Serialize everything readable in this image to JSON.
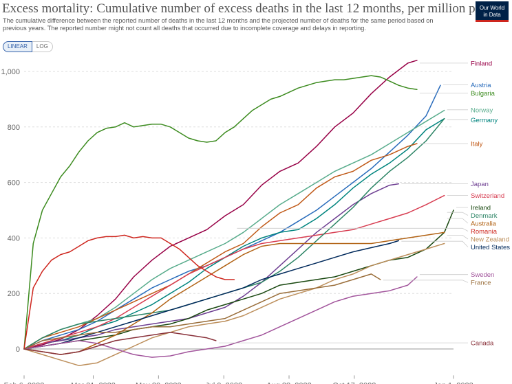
{
  "title": "Excess mortality: Cumulative number of excess deaths in the last 12 months, per million people",
  "subtitle": "The cumulative difference between the reported number of deaths in the last 12 months and the projected number of deaths for the same period based on previous years. The reported number might not count all deaths that occurred due to incomplete coverage and delays in reporting.",
  "logo": {
    "line1": "Our World",
    "line2": "in Data"
  },
  "scale_toggle": {
    "linear": "LINEAR",
    "log": "LOG"
  },
  "chart_data": {
    "type": "line",
    "title": "Excess mortality: Cumulative number of excess deaths in the last 12 months, per million people",
    "xlabel": "",
    "ylabel": "",
    "x_start": "2022-02-06",
    "xlim": [
      0,
      329
    ],
    "x_ticks": [
      {
        "label": "Feb 6, 2022",
        "value": 0
      },
      {
        "label": "Mar 31, 2022",
        "value": 53
      },
      {
        "label": "May 20, 2022",
        "value": 103
      },
      {
        "label": "Jul 9, 2022",
        "value": 153
      },
      {
        "label": "Aug 28, 2022",
        "value": 203
      },
      {
        "label": "Oct 17, 2022",
        "value": 253
      },
      {
        "label": "Jan 1, 2023",
        "value": 329
      }
    ],
    "ylim": [
      -100,
      1050
    ],
    "y_ticks": [
      0,
      200,
      400,
      600,
      800,
      1000
    ],
    "grid": true,
    "legend": "right",
    "series": [
      {
        "name": "Finland",
        "color": "#970046",
        "label_y": 1030,
        "x": [
          0,
          14,
          28,
          42,
          56,
          70,
          84,
          98,
          112,
          126,
          140,
          154,
          168,
          182,
          196,
          210,
          224,
          238,
          252,
          266,
          280,
          294,
          301
        ],
        "y": [
          0,
          15,
          35,
          70,
          120,
          180,
          260,
          320,
          370,
          400,
          430,
          480,
          520,
          590,
          640,
          670,
          730,
          800,
          850,
          920,
          980,
          1030,
          1040
        ]
      },
      {
        "name": "Austria",
        "color": "#286bbb",
        "label_y": 952,
        "x": [
          0,
          14,
          28,
          42,
          56,
          70,
          84,
          98,
          112,
          126,
          140,
          154,
          168,
          182,
          196,
          210,
          224,
          238,
          252,
          266,
          280,
          294,
          308,
          319
        ],
        "y": [
          0,
          30,
          50,
          70,
          100,
          140,
          180,
          220,
          250,
          280,
          300,
          330,
          360,
          390,
          420,
          460,
          500,
          550,
          600,
          650,
          710,
          770,
          840,
          950
        ]
      },
      {
        "name": "Bulgaria",
        "color": "#3c8b1f",
        "label_y": 922,
        "x": [
          0,
          7,
          14,
          21,
          28,
          35,
          42,
          49,
          56,
          63,
          70,
          77,
          84,
          91,
          98,
          105,
          112,
          119,
          126,
          133,
          140,
          147,
          154,
          161,
          168,
          175,
          182,
          189,
          196,
          203,
          210,
          217,
          224,
          231,
          238,
          245,
          252,
          259,
          266,
          273,
          280,
          287,
          294,
          301
        ],
        "y": [
          0,
          380,
          500,
          560,
          620,
          660,
          710,
          750,
          780,
          795,
          800,
          815,
          800,
          805,
          810,
          810,
          800,
          780,
          760,
          750,
          745,
          750,
          780,
          800,
          830,
          860,
          880,
          900,
          910,
          925,
          940,
          950,
          960,
          965,
          970,
          970,
          975,
          980,
          985,
          980,
          965,
          950,
          940,
          935
        ]
      },
      {
        "name": "Norway",
        "color": "#58ac8c",
        "label_y": 862,
        "x": [
          0,
          14,
          28,
          42,
          56,
          70,
          84,
          98,
          112,
          126,
          140,
          154,
          168,
          182,
          196,
          210,
          224,
          238,
          252,
          266,
          280,
          294,
          308,
          322
        ],
        "y": [
          0,
          40,
          70,
          90,
          110,
          150,
          200,
          250,
          290,
          320,
          350,
          380,
          420,
          470,
          520,
          560,
          600,
          640,
          670,
          700,
          740,
          780,
          820,
          860
        ]
      },
      {
        "name": "Germany",
        "color": "#00847e",
        "label_y": 826,
        "x": [
          0,
          14,
          28,
          42,
          56,
          70,
          84,
          98,
          112,
          126,
          140,
          154,
          168,
          182,
          196,
          210,
          224,
          238,
          252,
          266,
          280,
          294,
          308,
          322
        ],
        "y": [
          0,
          20,
          30,
          50,
          80,
          100,
          130,
          160,
          200,
          240,
          290,
          330,
          370,
          400,
          420,
          430,
          470,
          520,
          580,
          630,
          670,
          720,
          790,
          830
        ]
      },
      {
        "name": "Italy",
        "color": "#c05917",
        "label_y": 740,
        "x": [
          0,
          14,
          28,
          42,
          56,
          70,
          84,
          98,
          112,
          126,
          140,
          154,
          168,
          182,
          196,
          210,
          224,
          238,
          252,
          266,
          280,
          294,
          301
        ],
        "y": [
          0,
          40,
          60,
          80,
          110,
          140,
          170,
          200,
          230,
          270,
          310,
          350,
          380,
          440,
          490,
          520,
          580,
          620,
          640,
          680,
          700,
          730,
          740
        ]
      },
      {
        "name": "Japan",
        "color": "#6d3e91",
        "label_y": 595,
        "x": [
          0,
          14,
          28,
          42,
          56,
          70,
          84,
          98,
          112,
          126,
          140,
          154,
          168,
          182,
          196,
          210,
          224,
          238,
          252,
          266,
          280,
          287
        ],
        "y": [
          0,
          20,
          30,
          40,
          50,
          70,
          80,
          90,
          100,
          110,
          130,
          150,
          190,
          240,
          300,
          360,
          420,
          470,
          520,
          560,
          590,
          595
        ]
      },
      {
        "name": "Switzerland",
        "color": "#d73c50",
        "label_y": 553,
        "x": [
          0,
          14,
          28,
          42,
          56,
          70,
          84,
          98,
          112,
          126,
          140,
          154,
          168,
          182,
          196,
          210,
          224,
          238,
          252,
          266,
          280,
          294,
          308,
          322
        ],
        "y": [
          0,
          20,
          40,
          60,
          80,
          110,
          150,
          190,
          230,
          270,
          300,
          330,
          360,
          380,
          390,
          400,
          410,
          420,
          430,
          450,
          470,
          490,
          520,
          553
        ]
      },
      {
        "name": "Ireland",
        "color": "#18470f",
        "label_y": 510,
        "x": [
          0,
          14,
          28,
          42,
          56,
          70,
          84,
          98,
          112,
          126,
          140,
          154,
          168,
          182,
          196,
          210,
          224,
          238,
          252,
          266,
          280,
          294,
          308,
          322,
          329
        ],
        "y": [
          0,
          10,
          20,
          30,
          40,
          50,
          70,
          80,
          90,
          110,
          140,
          160,
          180,
          200,
          230,
          240,
          250,
          260,
          280,
          300,
          320,
          330,
          360,
          420,
          500
        ]
      },
      {
        "name": "Denmark",
        "color": "#2c8465",
        "label_y": 492,
        "x": [
          0,
          14,
          28,
          42,
          56,
          70,
          84,
          98,
          112,
          126,
          140,
          154,
          168,
          182,
          196,
          210,
          224,
          238,
          252,
          266,
          280,
          294,
          308,
          322
        ],
        "y": [
          0,
          40,
          70,
          90,
          100,
          110,
          120,
          130,
          140,
          160,
          180,
          200,
          220,
          240,
          280,
          330,
          390,
          450,
          510,
          580,
          640,
          690,
          750,
          830
        ]
      },
      {
        "name": "Australia",
        "color": "#b16214",
        "label_y": 470,
        "x": [
          0,
          14,
          28,
          42,
          56,
          70,
          84,
          98,
          112,
          126,
          140,
          154,
          168,
          182,
          196,
          210,
          224,
          238,
          252,
          266,
          280,
          294,
          308,
          322
        ],
        "y": [
          0,
          -10,
          -20,
          -10,
          20,
          50,
          90,
          130,
          180,
          220,
          260,
          300,
          340,
          370,
          380,
          380,
          380,
          380,
          380,
          380,
          390,
          400,
          410,
          420
        ]
      },
      {
        "name": "Romania",
        "color": "#ce261e",
        "label_y": 435,
        "x": [
          0,
          7,
          14,
          21,
          28,
          35,
          42,
          49,
          56,
          63,
          70,
          77,
          84,
          91,
          98,
          105,
          112,
          119,
          126,
          133,
          140,
          147,
          154,
          161
        ],
        "y": [
          0,
          220,
          280,
          320,
          340,
          350,
          370,
          390,
          400,
          405,
          405,
          410,
          400,
          405,
          400,
          400,
          380,
          360,
          330,
          300,
          280,
          260,
          250,
          250
        ]
      },
      {
        "name": "New Zealand",
        "color": "#bc8e5a",
        "label_y": 410,
        "x": [
          0,
          14,
          28,
          42,
          56,
          70,
          84,
          98,
          112,
          126,
          140,
          154,
          168,
          182,
          196,
          210,
          224,
          238,
          252,
          266,
          280,
          294,
          308,
          322
        ],
        "y": [
          0,
          -20,
          -40,
          -60,
          -50,
          -20,
          10,
          40,
          60,
          80,
          90,
          100,
          120,
          150,
          180,
          200,
          220,
          250,
          270,
          300,
          320,
          340,
          360,
          380
        ]
      },
      {
        "name": "United States",
        "color": "#00295b",
        "label_y": 388,
        "x": [
          0,
          14,
          28,
          42,
          56,
          70,
          84,
          98,
          112,
          126,
          140,
          154,
          168,
          182,
          196,
          210,
          224,
          238,
          252,
          266,
          280,
          287
        ],
        "y": [
          0,
          10,
          20,
          40,
          60,
          80,
          100,
          120,
          140,
          160,
          180,
          200,
          220,
          250,
          270,
          290,
          310,
          330,
          350,
          365,
          380,
          390
        ]
      },
      {
        "name": "Sweden",
        "color": "#a2559c",
        "label_y": 268,
        "x": [
          0,
          14,
          28,
          42,
          56,
          70,
          84,
          98,
          112,
          126,
          140,
          154,
          168,
          182,
          196,
          210,
          224,
          238,
          252,
          266,
          280,
          294,
          301
        ],
        "y": [
          0,
          10,
          20,
          30,
          20,
          0,
          -20,
          -30,
          -25,
          -10,
          0,
          10,
          30,
          50,
          80,
          110,
          140,
          170,
          190,
          200,
          210,
          230,
          260
        ]
      },
      {
        "name": "France",
        "color": "#996d39",
        "label_y": 248,
        "x": [
          0,
          14,
          28,
          42,
          56,
          70,
          84,
          98,
          112,
          126,
          140,
          154,
          168,
          182,
          196,
          210,
          224,
          238,
          252,
          266,
          273
        ],
        "y": [
          0,
          30,
          40,
          50,
          60,
          60,
          70,
          80,
          80,
          90,
          100,
          110,
          140,
          170,
          200,
          210,
          220,
          230,
          250,
          270,
          250
        ]
      },
      {
        "name": "Canada",
        "color": "#883039",
        "label_y": 22,
        "x": [
          0,
          14,
          28,
          42,
          56,
          70,
          84,
          98,
          112,
          126,
          140,
          147
        ],
        "y": [
          0,
          -10,
          -20,
          -10,
          10,
          30,
          40,
          50,
          60,
          50,
          40,
          30
        ]
      }
    ]
  }
}
